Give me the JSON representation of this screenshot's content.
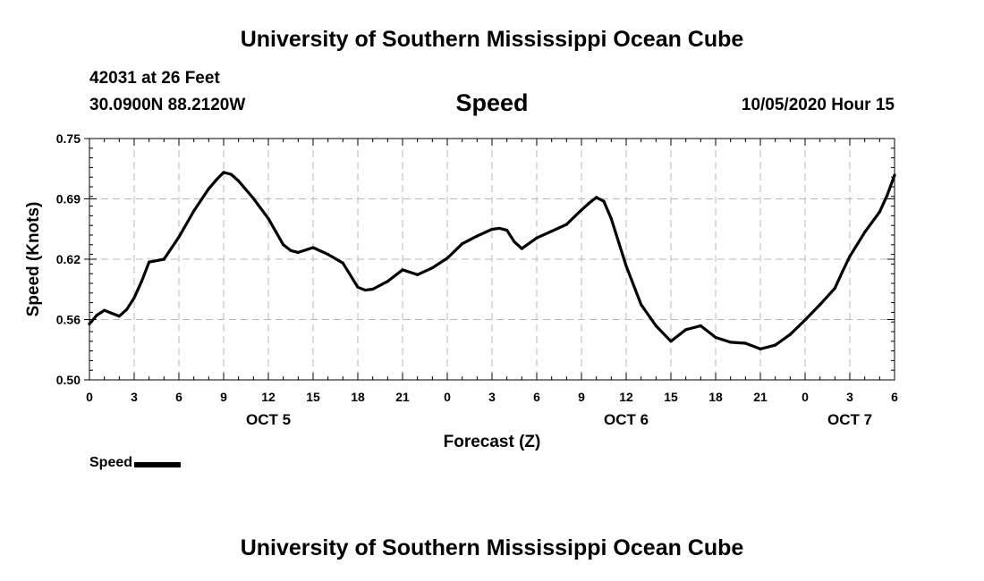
{
  "header": {
    "title": "University of Southern Mississippi Ocean Cube",
    "station": "42031 at 26 Feet",
    "coords": "30.0900N 88.2120W",
    "datetime": "10/05/2020 Hour 15"
  },
  "footer": {
    "title": "University of Southern Mississippi Ocean Cube"
  },
  "chart_data": {
    "type": "line",
    "title": "Speed",
    "xlabel": "Forecast (Z)",
    "ylabel": "Speed (Knots)",
    "ylim": [
      0.5,
      0.75
    ],
    "y_ticks": [
      "0.50",
      "0.56",
      "0.62",
      "0.69",
      "0.75"
    ],
    "x_range_hours": [
      0,
      54
    ],
    "x_ticks": [
      "0",
      "3",
      "6",
      "9",
      "12",
      "15",
      "18",
      "21",
      "0",
      "3",
      "6",
      "9",
      "12",
      "15",
      "18",
      "21",
      "0",
      "3",
      "6"
    ],
    "day_labels": [
      {
        "label": "OCT 5",
        "hour": 12
      },
      {
        "label": "OCT 6",
        "hour": 36
      },
      {
        "label": "OCT 7",
        "hour": 51
      }
    ],
    "grid": true,
    "legend": "bottom-left",
    "series": [
      {
        "name": "Speed",
        "color": "#000000",
        "x": [
          0,
          0.5,
          1,
          1.5,
          2,
          2.5,
          3,
          3.5,
          4,
          5,
          6,
          7,
          8,
          8.5,
          9,
          9.5,
          10,
          11,
          12,
          13,
          13.5,
          14,
          15,
          16,
          17,
          18,
          18.5,
          19,
          20,
          21,
          22,
          23,
          24,
          25,
          26,
          27,
          27.5,
          28,
          28.5,
          29,
          30,
          31,
          32,
          33,
          33.5,
          34,
          34.5,
          35,
          36,
          37,
          38,
          39,
          40,
          41,
          42,
          43,
          44,
          45,
          46,
          47,
          48,
          49,
          50,
          50.5,
          51,
          52,
          53,
          53.5,
          54
        ],
        "values": [
          0.558,
          0.567,
          0.572,
          0.569,
          0.566,
          0.573,
          0.585,
          0.602,
          0.622,
          0.625,
          0.648,
          0.675,
          0.698,
          0.707,
          0.715,
          0.713,
          0.706,
          0.688,
          0.667,
          0.64,
          0.634,
          0.632,
          0.637,
          0.63,
          0.621,
          0.596,
          0.593,
          0.594,
          0.602,
          0.614,
          0.609,
          0.616,
          0.626,
          0.641,
          0.649,
          0.656,
          0.657,
          0.655,
          0.643,
          0.636,
          0.647,
          0.654,
          0.661,
          0.676,
          0.683,
          0.689,
          0.685,
          0.667,
          0.618,
          0.578,
          0.556,
          0.54,
          0.552,
          0.556,
          0.544,
          0.539,
          0.538,
          0.532,
          0.536,
          0.547,
          0.562,
          0.578,
          0.595,
          0.612,
          0.628,
          0.653,
          0.674,
          0.691,
          0.712
        ]
      }
    ]
  }
}
